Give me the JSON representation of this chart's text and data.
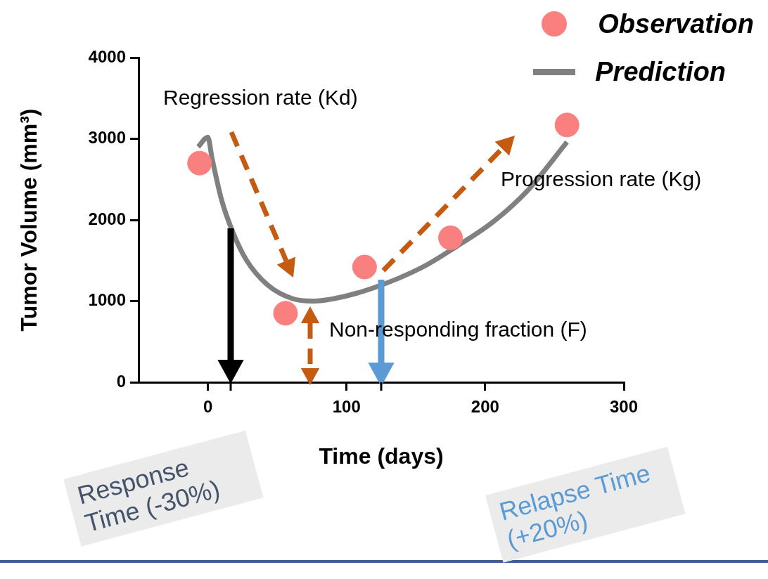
{
  "chart_data": {
    "type": "scatter",
    "xlabel": "Time (days)",
    "ylabel": "Tumor Volume (mm³)",
    "xlim": [
      -50,
      300
    ],
    "xticks": [
      0,
      100,
      200,
      300
    ],
    "ylim": [
      0,
      4000
    ],
    "yticks": [
      0,
      1000,
      2000,
      3000,
      4000
    ],
    "grid": false,
    "legend": "top right",
    "series": [
      {
        "name": "Observation",
        "marker": "circle",
        "color": "#fa8080",
        "x": [
          -6,
          56,
          113,
          175,
          259
        ],
        "values": [
          2700,
          850,
          1420,
          1780,
          3170
        ]
      },
      {
        "name": "Prediction",
        "type": "line",
        "marker": "none",
        "color": "#808080",
        "x": [
          -7,
          0,
          3,
          10,
          18,
          28,
          43,
          61,
          76,
          91,
          119,
          155,
          180,
          206,
          231,
          259
        ],
        "values": [
          2900,
          3020,
          2760,
          2240,
          1850,
          1500,
          1200,
          1030,
          1000,
          1030,
          1160,
          1420,
          1680,
          1980,
          2370,
          2960
        ]
      }
    ],
    "annotations": [
      "Regression rate (Kd)",
      "Progression rate (Kg)",
      "Non-responding fraction (F)",
      "Response Time (-30%)",
      "Relapse Time (+20%)"
    ]
  }
}
